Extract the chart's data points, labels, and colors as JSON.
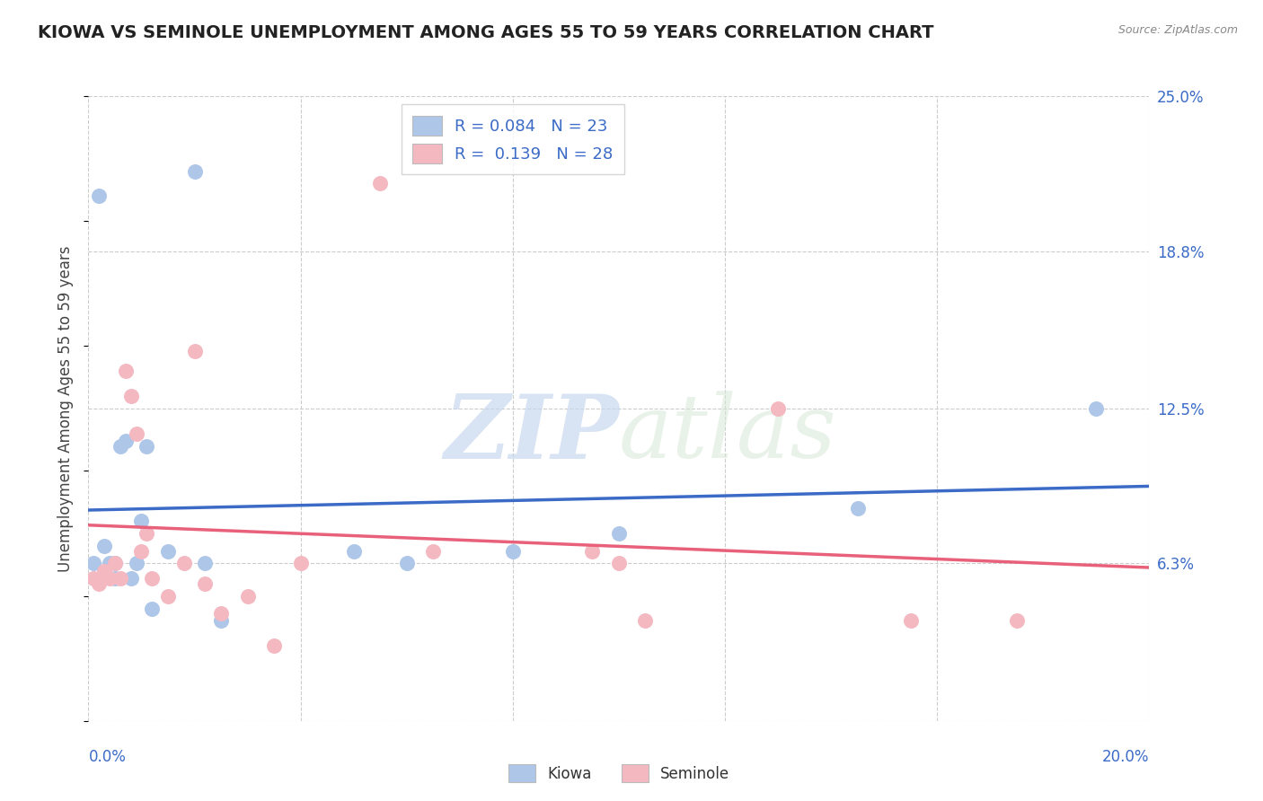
{
  "title": "KIOWA VS SEMINOLE UNEMPLOYMENT AMONG AGES 55 TO 59 YEARS CORRELATION CHART",
  "source": "Source: ZipAtlas.com",
  "ylabel": "Unemployment Among Ages 55 to 59 years",
  "xlim": [
    0.0,
    0.2
  ],
  "ylim": [
    0.0,
    0.25
  ],
  "y_tick_labels_right": [
    "6.3%",
    "12.5%",
    "18.8%",
    "25.0%"
  ],
  "y_tick_values_right": [
    0.063,
    0.125,
    0.188,
    0.25
  ],
  "kiowa_color": "#aec6e8",
  "seminole_color": "#f4b8c1",
  "kiowa_line_color": "#3b6bc7",
  "seminole_line_color": "#e8607a",
  "legend_text_color": "#3b6bc7",
  "R_kiowa": 0.084,
  "N_kiowa": 23,
  "R_seminole": 0.139,
  "N_seminole": 28,
  "kiowa_x": [
    0.001,
    0.002,
    0.003,
    0.004,
    0.005,
    0.005,
    0.006,
    0.007,
    0.008,
    0.009,
    0.01,
    0.011,
    0.012,
    0.015,
    0.02,
    0.022,
    0.025,
    0.05,
    0.06,
    0.08,
    0.1,
    0.145,
    0.19
  ],
  "kiowa_y": [
    0.063,
    0.21,
    0.07,
    0.063,
    0.063,
    0.057,
    0.11,
    0.112,
    0.057,
    0.063,
    0.08,
    0.11,
    0.045,
    0.068,
    0.22,
    0.063,
    0.04,
    0.068,
    0.063,
    0.068,
    0.075,
    0.085,
    0.125
  ],
  "seminole_x": [
    0.001,
    0.002,
    0.003,
    0.004,
    0.005,
    0.006,
    0.007,
    0.008,
    0.009,
    0.01,
    0.011,
    0.012,
    0.015,
    0.018,
    0.02,
    0.022,
    0.025,
    0.03,
    0.035,
    0.04,
    0.055,
    0.065,
    0.095,
    0.1,
    0.105,
    0.13,
    0.155,
    0.175
  ],
  "seminole_y": [
    0.057,
    0.055,
    0.06,
    0.057,
    0.063,
    0.057,
    0.14,
    0.13,
    0.115,
    0.068,
    0.075,
    0.057,
    0.05,
    0.063,
    0.148,
    0.055,
    0.043,
    0.05,
    0.03,
    0.063,
    0.215,
    0.068,
    0.068,
    0.063,
    0.04,
    0.125,
    0.04,
    0.04
  ],
  "watermark_zip": "ZIP",
  "watermark_atlas": "atlas",
  "background_color": "#ffffff",
  "grid_color": "#cccccc",
  "title_fontsize": 14,
  "axis_label_fontsize": 12,
  "tick_fontsize": 12
}
